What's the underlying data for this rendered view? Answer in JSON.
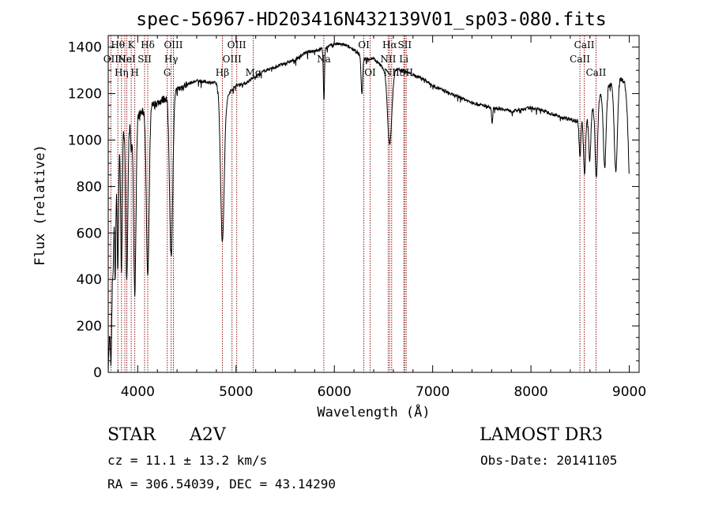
{
  "chart_data": {
    "type": "line",
    "title": "spec-56967-HD203416N432139V01_sp03-080.fits",
    "xlabel": "Wavelength (Å)",
    "ylabel": "Flux (relative)",
    "xlim": [
      3700,
      9100
    ],
    "ylim": [
      0,
      1450
    ],
    "x_ticks": [
      4000,
      5000,
      6000,
      7000,
      8000,
      9000
    ],
    "x_tick_labels": [
      "4000",
      "5000",
      "6000",
      "7000",
      "8000",
      "9000"
    ],
    "y_ticks": [
      0,
      200,
      400,
      600,
      800,
      1000,
      1200,
      1400
    ],
    "y_tick_labels": [
      "0",
      "200",
      "400",
      "600",
      "800",
      "1000",
      "1200",
      "1400"
    ],
    "grid": false,
    "series": [
      {
        "name": "spectrum",
        "continuum": [
          [
            3700,
            0
          ],
          [
            3720,
            300
          ],
          [
            3750,
            750
          ],
          [
            3780,
            850
          ],
          [
            3800,
            950
          ],
          [
            3850,
            1050
          ],
          [
            3900,
            1050
          ],
          [
            3950,
            1090
          ],
          [
            4000,
            1110
          ],
          [
            4050,
            1120
          ],
          [
            4100,
            1160
          ],
          [
            4150,
            1150
          ],
          [
            4200,
            1160
          ],
          [
            4300,
            1185
          ],
          [
            4400,
            1215
          ],
          [
            4500,
            1240
          ],
          [
            4600,
            1255
          ],
          [
            4700,
            1250
          ],
          [
            4800,
            1245
          ],
          [
            4900,
            1175
          ],
          [
            4950,
            1215
          ],
          [
            5000,
            1235
          ],
          [
            5100,
            1245
          ],
          [
            5200,
            1275
          ],
          [
            5300,
            1300
          ],
          [
            5400,
            1315
          ],
          [
            5500,
            1330
          ],
          [
            5600,
            1345
          ],
          [
            5700,
            1375
          ],
          [
            5800,
            1385
          ],
          [
            5900,
            1395
          ],
          [
            6000,
            1415
          ],
          [
            6100,
            1410
          ],
          [
            6200,
            1390
          ],
          [
            6300,
            1350
          ],
          [
            6400,
            1350
          ],
          [
            6500,
            1310
          ],
          [
            6600,
            1310
          ],
          [
            6700,
            1300
          ],
          [
            6800,
            1280
          ],
          [
            6900,
            1265
          ],
          [
            7000,
            1235
          ],
          [
            7100,
            1215
          ],
          [
            7200,
            1195
          ],
          [
            7300,
            1180
          ],
          [
            7400,
            1160
          ],
          [
            7500,
            1150
          ],
          [
            7600,
            1140
          ],
          [
            7700,
            1135
          ],
          [
            7800,
            1125
          ],
          [
            7900,
            1130
          ],
          [
            8000,
            1140
          ],
          [
            8100,
            1130
          ],
          [
            8200,
            1115
          ],
          [
            8300,
            1100
          ],
          [
            8400,
            1090
          ],
          [
            8500,
            1080
          ],
          [
            8600,
            1110
          ],
          [
            8700,
            1190
          ],
          [
            8800,
            1240
          ],
          [
            8900,
            1270
          ],
          [
            8950,
            1250
          ],
          [
            9000,
            1160
          ]
        ],
        "absorption_lines": [
          {
            "center": 3730,
            "depth": 400,
            "width": 8
          },
          {
            "center": 3750,
            "depth": 300,
            "width": 6
          },
          {
            "center": 3771,
            "depth": 420,
            "width": 6
          },
          {
            "center": 3798,
            "depth": 500,
            "width": 7
          },
          {
            "center": 3835,
            "depth": 580,
            "width": 8
          },
          {
            "center": 3889,
            "depth": 640,
            "width": 10
          },
          {
            "center": 3934,
            "depth": 120,
            "width": 6
          },
          {
            "center": 3970,
            "depth": 760,
            "width": 12
          },
          {
            "center": 4102,
            "depth": 750,
            "width": 14
          },
          {
            "center": 4340,
            "depth": 700,
            "width": 16
          },
          {
            "center": 4861,
            "depth": 640,
            "width": 18
          },
          {
            "center": 5890,
            "depth": 90,
            "width": 5
          },
          {
            "center": 5896,
            "depth": 170,
            "width": 5
          },
          {
            "center": 6280,
            "depth": 160,
            "width": 8
          },
          {
            "center": 6563,
            "depth": 330,
            "width": 22
          },
          {
            "center": 7605,
            "depth": 70,
            "width": 6
          },
          {
            "center": 8498,
            "depth": 160,
            "width": 8
          },
          {
            "center": 8545,
            "depth": 240,
            "width": 10
          },
          {
            "center": 8598,
            "depth": 200,
            "width": 10
          },
          {
            "center": 8665,
            "depth": 330,
            "width": 12
          },
          {
            "center": 8750,
            "depth": 330,
            "width": 14
          },
          {
            "center": 8863,
            "depth": 390,
            "width": 16
          },
          {
            "center": 9015,
            "depth": 450,
            "width": 20
          }
        ]
      }
    ],
    "reference_lines": [
      {
        "x": 3727,
        "label": "OII",
        "row": 1
      },
      {
        "x": 3798,
        "label": "Hθ",
        "row": 0
      },
      {
        "x": 3835,
        "label": "Hη",
        "row": 2
      },
      {
        "x": 3869,
        "label": "Ne",
        "row": 1
      },
      {
        "x": 3889,
        "label": "HeI",
        "row": 1
      },
      {
        "x": 3934,
        "label": "K",
        "row": 0
      },
      {
        "x": 3970,
        "label": "H",
        "row": 2
      },
      {
        "x": 4070,
        "label": "SII",
        "row": 1
      },
      {
        "x": 4102,
        "label": "Hδ",
        "row": 0
      },
      {
        "x": 4300,
        "label": "G",
        "row": 2
      },
      {
        "x": 4340,
        "label": "Hγ",
        "row": 1
      },
      {
        "x": 4363,
        "label": "OIII",
        "row": 0
      },
      {
        "x": 4861,
        "label": "Hβ",
        "row": 2
      },
      {
        "x": 4959,
        "label": "OIII",
        "row": 1
      },
      {
        "x": 5007,
        "label": "OIII",
        "row": 0
      },
      {
        "x": 5175,
        "label": "Mg",
        "row": 2
      },
      {
        "x": 5893,
        "label": "Na",
        "row": 1
      },
      {
        "x": 6300,
        "label": "OI",
        "row": 0
      },
      {
        "x": 6364,
        "label": "OI",
        "row": 2
      },
      {
        "x": 6548,
        "label": "NII",
        "row": 1
      },
      {
        "x": 6563,
        "label": "Hα",
        "row": 0
      },
      {
        "x": 6583,
        "label": "NII",
        "row": 2
      },
      {
        "x": 6707,
        "label": "Li",
        "row": 1
      },
      {
        "x": 6716,
        "label": "SII",
        "row": 0
      },
      {
        "x": 6731,
        "label": "SII",
        "row": 2
      },
      {
        "x": 8498,
        "label": "CaII",
        "row": 1
      },
      {
        "x": 8542,
        "label": "CaII",
        "row": 0
      },
      {
        "x": 8662,
        "label": "CaII",
        "row": 2
      }
    ]
  },
  "footer": {
    "class_label": "STAR",
    "subclass": "A2V",
    "survey": "LAMOST DR3",
    "cz": "cz = 11.1 ± 13.2 km/s",
    "obs_date": "Obs-Date: 20141105",
    "coords": "RA = 306.54039, DEC =  43.14290"
  },
  "colors": {
    "axis": "#000000",
    "spectrum": "#000000",
    "reference_line": "#8b1a1a"
  }
}
